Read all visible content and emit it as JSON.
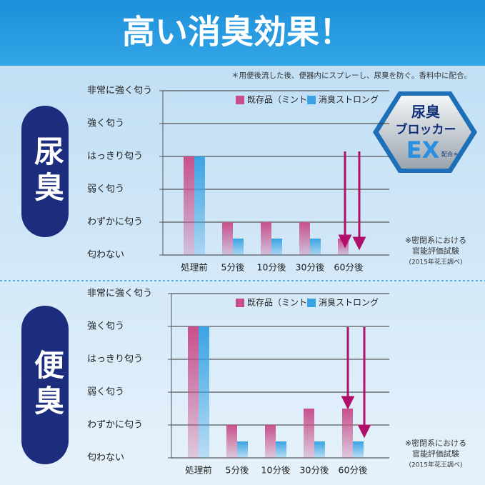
{
  "header": {
    "title": "高い消臭効果！",
    "note": "＊用便後流した後、便器内にスプレーし、尿臭を防ぐ。香料中に配合。"
  },
  "badge": {
    "lines": [
      "尿臭",
      "ブロッカー",
      "EX",
      "配合＊"
    ]
  },
  "panels": [
    {
      "label": "尿臭",
      "note": [
        "※密閉系における",
        "官能評価試験",
        "(2015年花王調べ)"
      ]
    },
    {
      "label": "便臭",
      "note": [
        "※密閉系における",
        "官能評価試験",
        "(2015年花王調べ)"
      ]
    }
  ],
  "chart_data": [
    {
      "type": "bar",
      "categories": [
        "処理前",
        "5分後",
        "10分後",
        "30分後",
        "60分後"
      ],
      "series": [
        {
          "name": "既存品（ミント）",
          "color": "#c8508a",
          "values": [
            3,
            1,
            1,
            1,
            0.5
          ]
        },
        {
          "name": "消臭ストロング",
          "color": "#3ba3e3",
          "values": [
            3,
            0.5,
            0.5,
            0.5,
            0
          ]
        }
      ],
      "ylim": [
        0,
        5
      ],
      "yticks": [
        {
          "value": 0,
          "label": "匂わない"
        },
        {
          "value": 1,
          "label": "わずかに匂う"
        },
        {
          "value": 2,
          "label": "弱く匂う"
        },
        {
          "value": 3,
          "label": "はっきり匂う"
        },
        {
          "value": 4,
          "label": "強く匂う"
        },
        {
          "value": 5,
          "label": "非常に強く匂う"
        }
      ],
      "grid": true
    },
    {
      "type": "bar",
      "categories": [
        "処理前",
        "5分後",
        "10分後",
        "30分後",
        "60分後"
      ],
      "series": [
        {
          "name": "既存品（ミント）",
          "color": "#c8508a",
          "values": [
            4,
            1,
            1,
            1.5,
            1.5
          ]
        },
        {
          "name": "消臭ストロング",
          "color": "#3ba3e3",
          "values": [
            4,
            0.5,
            0.5,
            0.5,
            0.5
          ]
        }
      ],
      "ylim": [
        0,
        5
      ],
      "yticks": [
        {
          "value": 0,
          "label": "匂わない"
        },
        {
          "value": 1,
          "label": "わずかに匂う"
        },
        {
          "value": 2,
          "label": "弱く匂う"
        },
        {
          "value": 3,
          "label": "はっきり匂う"
        },
        {
          "value": 4,
          "label": "強く匂う"
        },
        {
          "value": 5,
          "label": "非常に強く匂う"
        }
      ],
      "grid": true
    }
  ]
}
